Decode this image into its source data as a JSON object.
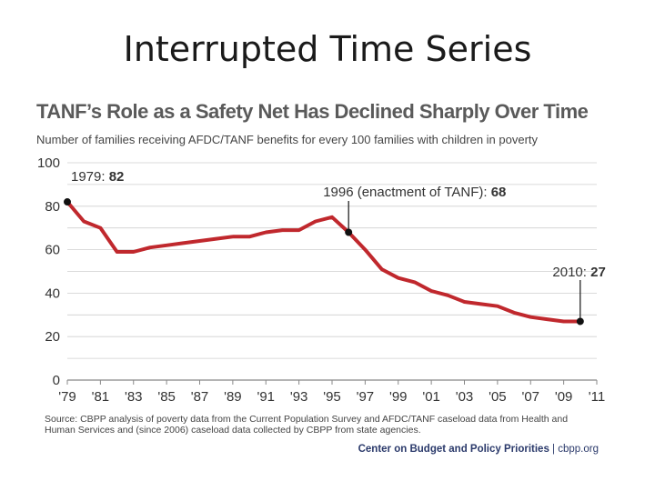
{
  "slide": {
    "title": "Interrupted Time Series"
  },
  "chart_data": {
    "type": "line",
    "title": "TANF’s Role as a Safety Net Has Declined Sharply Over Time",
    "subtitle": "Number of families receiving AFDC/TANF benefits for every 100 families with children in poverty",
    "xlabel": "",
    "ylabel": "",
    "xlim": [
      1979,
      2011
    ],
    "ylim": [
      0,
      100
    ],
    "y_ticks": [
      0,
      20,
      40,
      60,
      80,
      100
    ],
    "x_ticks": [
      {
        "year": 1979,
        "label": "'79"
      },
      {
        "year": 1981,
        "label": "'81"
      },
      {
        "year": 1983,
        "label": "'83"
      },
      {
        "year": 1985,
        "label": "'85"
      },
      {
        "year": 1987,
        "label": "'87"
      },
      {
        "year": 1989,
        "label": "'89"
      },
      {
        "year": 1991,
        "label": "'91"
      },
      {
        "year": 1993,
        "label": "'93"
      },
      {
        "year": 1995,
        "label": "'95"
      },
      {
        "year": 1997,
        "label": "'97"
      },
      {
        "year": 1999,
        "label": "'99"
      },
      {
        "year": 2001,
        "label": "'01"
      },
      {
        "year": 2003,
        "label": "'03"
      },
      {
        "year": 2005,
        "label": "'05"
      },
      {
        "year": 2007,
        "label": "'07"
      },
      {
        "year": 2009,
        "label": "'09"
      },
      {
        "year": 2011,
        "label": "'11"
      }
    ],
    "grid": true,
    "series": [
      {
        "color": "#c0282d",
        "x": [
          1979,
          1980,
          1981,
          1982,
          1983,
          1984,
          1985,
          1986,
          1987,
          1988,
          1989,
          1990,
          1991,
          1992,
          1993,
          1994,
          1995,
          1996,
          1997,
          1998,
          1999,
          2000,
          2001,
          2002,
          2003,
          2004,
          2005,
          2006,
          2007,
          2008,
          2009,
          2010
        ],
        "y": [
          82,
          73,
          70,
          59,
          59,
          61,
          62,
          63,
          64,
          65,
          66,
          66,
          68,
          69,
          69,
          73,
          75,
          68,
          60,
          51,
          47,
          45,
          41,
          39,
          36,
          35,
          34,
          31,
          29,
          28,
          27,
          27
        ]
      }
    ],
    "annotations": [
      {
        "x": 1979,
        "y": 82,
        "label": "1979: ",
        "value": "82"
      },
      {
        "x": 1996,
        "y": 68,
        "label": "1996 (enactment of TANF): ",
        "value": "68"
      },
      {
        "x": 2010,
        "y": 27,
        "label": "2010: ",
        "value": "27"
      }
    ]
  },
  "source": "Source: CBPP analysis of poverty data from the Current Population Survey and AFDC/TANF caseload data from Health and Human Services and (since 2006) caseload data collected by CBPP from state agencies.",
  "credit": {
    "org": "Center on Budget and Policy Priorities",
    "separator": " | ",
    "site": "cbpp.org"
  }
}
